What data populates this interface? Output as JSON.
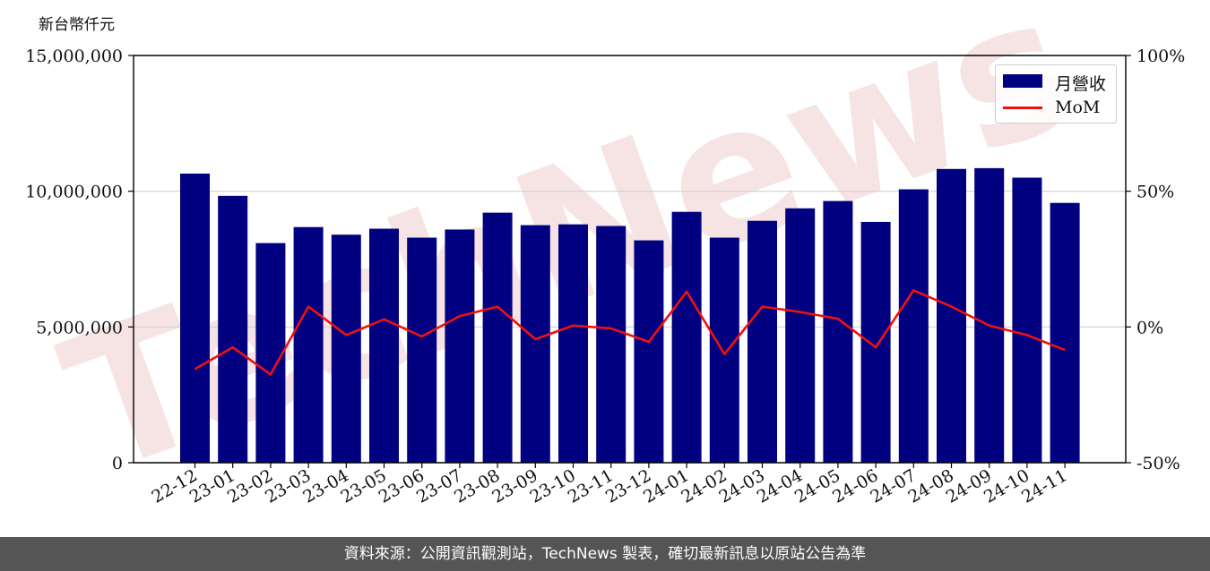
{
  "colors": {
    "bar": "#000080",
    "line": "#ee1111",
    "watermark": "#f3dcdc",
    "footer_bg": "#555555"
  },
  "watermark_text": "TechNews",
  "footer_text": "資料來源：公開資訊觀測站，TechNews 製表，確切最新訊息以原站公告為準",
  "chart_data": {
    "type": "bar",
    "title": "",
    "ylabel": "新台幣仟元",
    "xlabel": "",
    "categories": [
      "22-12",
      "23-01",
      "23-02",
      "23-03",
      "23-04",
      "23-05",
      "23-06",
      "23-07",
      "23-08",
      "23-09",
      "23-10",
      "23-11",
      "23-12",
      "24-01",
      "24-02",
      "24-03",
      "24-04",
      "24-05",
      "24-06",
      "24-07",
      "24-08",
      "24-09",
      "24-10",
      "24-11"
    ],
    "series": [
      {
        "name": "月營收",
        "type": "bar",
        "axis": "left",
        "values": [
          10650000,
          9830000,
          8090000,
          8680000,
          8400000,
          8620000,
          8290000,
          8590000,
          9210000,
          8750000,
          8780000,
          8720000,
          8190000,
          9240000,
          8290000,
          8910000,
          9370000,
          9640000,
          8870000,
          10070000,
          10820000,
          10850000,
          10500000,
          9570000
        ]
      },
      {
        "name": "MoM",
        "type": "line",
        "axis": "right",
        "values": [
          -15.5,
          -7.5,
          -17.5,
          7.5,
          -3.0,
          2.8,
          -3.5,
          4.0,
          7.5,
          -4.5,
          0.5,
          -0.5,
          -5.5,
          13.0,
          -10.0,
          7.5,
          5.5,
          3.0,
          -7.5,
          13.5,
          7.5,
          0.5,
          -3.0,
          -8.5
        ]
      }
    ],
    "ylim": [
      0,
      15000000
    ],
    "y_ticks": [
      "0",
      "5,000,000",
      "10,000,000",
      "15,000,000"
    ],
    "y2lim": [
      -50,
      100
    ],
    "y2_ticks": [
      "-50%",
      "0%",
      "50%",
      "100%"
    ],
    "grid": "horizontal",
    "legend": "top-right"
  }
}
